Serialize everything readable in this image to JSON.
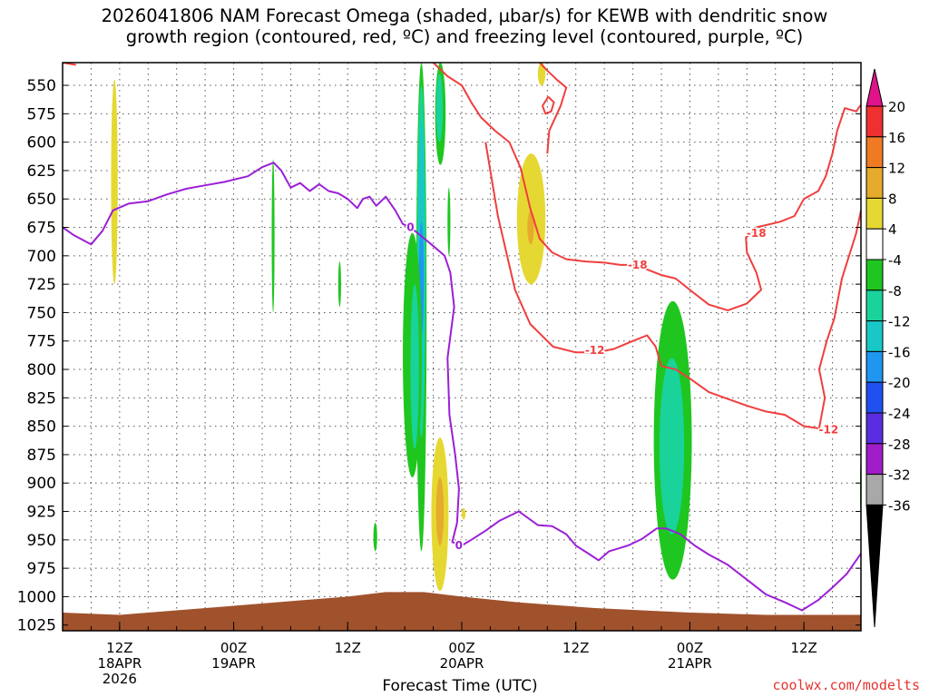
{
  "title_line1": "2026041806 NAM Forecast Omega (shaded, µbar/s) for KEWB with dendritic snow",
  "title_line2": "growth region (contoured, red, ºC) and freezing level (contoured, purple, ºC)",
  "credit": "coolwx.com/modelts",
  "chart_data": {
    "type": "heatmap",
    "xlabel": "Forecast Time (UTC)",
    "ylabel": "",
    "x_unit": "forecast hour from 2026041806",
    "xlim": [
      0,
      84
    ],
    "ylim": [
      1030,
      530
    ],
    "y_ticks": [
      550,
      575,
      600,
      625,
      650,
      675,
      700,
      725,
      750,
      775,
      800,
      825,
      850,
      875,
      900,
      925,
      950,
      975,
      1000,
      1025
    ],
    "x_ticks": [
      {
        "hour": 6,
        "label": [
          "12Z",
          "18APR",
          "2026"
        ]
      },
      {
        "hour": 18,
        "label": [
          "00Z",
          "19APR"
        ]
      },
      {
        "hour": 30,
        "label": [
          "12Z"
        ]
      },
      {
        "hour": 42,
        "label": [
          "00Z",
          "20APR"
        ]
      },
      {
        "hour": 54,
        "label": [
          "12Z"
        ]
      },
      {
        "hour": 66,
        "label": [
          "00Z",
          "21APR"
        ]
      },
      {
        "hour": 78,
        "label": [
          "12Z"
        ]
      }
    ],
    "grid": true,
    "colorbar": {
      "labels": [
        "20",
        "16",
        "12",
        "8",
        "4",
        "-4",
        "-8",
        "-12",
        "-16",
        "-20",
        "-24",
        "-28",
        "-32",
        "-36"
      ],
      "colors": [
        "#e8154f",
        "#f03030",
        "#f07a24",
        "#e6aa2c",
        "#e6d832",
        "#ffffff",
        "#1fc61f",
        "#19d39a",
        "#19c7c7",
        "#1f96f0",
        "#2050f0",
        "#5a2ee0",
        "#a01cc8",
        "#a8a8a8"
      ],
      "top_triangle_color": "#e0138a",
      "bottom_triangle_color": "#000000"
    },
    "omega_regions": [
      {
        "class": "4 to 8",
        "color": "#e6d832",
        "x": 5.1,
        "y": 545,
        "w": 0.7,
        "h": 180
      },
      {
        "class": "-4 to -8",
        "color": "#1fc61f",
        "x": 22.0,
        "y": 615,
        "w": 0.3,
        "h": 135
      },
      {
        "class": "-4 to -8",
        "color": "#1fc61f",
        "x": 29.0,
        "y": 705,
        "w": 0.3,
        "h": 40
      },
      {
        "class": "-4 to -8",
        "color": "#1fc61f",
        "x": 37.2,
        "y": 530,
        "w": 1.1,
        "h": 430
      },
      {
        "class": "-8 to -12",
        "color": "#19d39a",
        "x": 37.3,
        "y": 550,
        "w": 0.9,
        "h": 310
      },
      {
        "class": "-12 to -16",
        "color": "#19c7c7",
        "x": 37.4,
        "y": 580,
        "w": 0.7,
        "h": 250
      },
      {
        "class": "-16 to -20",
        "color": "#1f96f0",
        "x": 37.5,
        "y": 670,
        "w": 0.5,
        "h": 100
      },
      {
        "class": "-4 to -8",
        "color": "#1fc61f",
        "x": 39.2,
        "y": 530,
        "w": 1.1,
        "h": 90
      },
      {
        "class": "-8 to -12",
        "color": "#19d39a",
        "x": 39.3,
        "y": 540,
        "w": 0.7,
        "h": 60
      },
      {
        "class": "-4 to -8",
        "color": "#1fc61f",
        "x": 35.8,
        "y": 680,
        "w": 2.0,
        "h": 215
      },
      {
        "class": "-8 to -12",
        "color": "#19d39a",
        "x": 36.6,
        "y": 725,
        "w": 0.9,
        "h": 145
      },
      {
        "class": "-4 to -8",
        "color": "#1fc61f",
        "x": 40.5,
        "y": 640,
        "w": 0.3,
        "h": 60
      },
      {
        "class": "4 to 8",
        "color": "#e6d832",
        "x": 38.8,
        "y": 860,
        "w": 1.8,
        "h": 135
      },
      {
        "class": "8 to 12",
        "color": "#e6aa2c",
        "x": 39.3,
        "y": 895,
        "w": 0.8,
        "h": 60
      },
      {
        "class": "4 to 8",
        "color": "#e6d832",
        "x": 42.0,
        "y": 922,
        "w": 0.4,
        "h": 10
      },
      {
        "class": "-4 to -8",
        "color": "#1fc61f",
        "x": 32.7,
        "y": 935,
        "w": 0.4,
        "h": 25
      },
      {
        "class": "4 to 8",
        "color": "#e6d832",
        "x": 47.8,
        "y": 610,
        "w": 3.0,
        "h": 115
      },
      {
        "class": "8 to 12",
        "color": "#e6aa2c",
        "x": 48.9,
        "y": 660,
        "w": 0.7,
        "h": 30
      },
      {
        "class": "4 to 8",
        "color": "#e6d832",
        "x": 50.0,
        "y": 530,
        "w": 0.8,
        "h": 20
      },
      {
        "class": "-4 to -8",
        "color": "#1fc61f",
        "x": 62.2,
        "y": 740,
        "w": 4.0,
        "h": 245
      },
      {
        "class": "-8 to -12",
        "color": "#19d39a",
        "x": 62.8,
        "y": 790,
        "w": 2.6,
        "h": 155
      },
      {
        "class": "-4 to -8",
        "color": "#1fc61f",
        "x": 83.9,
        "y": 870,
        "w": 0.4,
        "h": 70
      }
    ],
    "contours": [
      {
        "name": "-12",
        "label": "-12",
        "color": "#f03e3e",
        "points": [
          [
            44.5,
            600
          ],
          [
            45.8,
            665
          ],
          [
            47.6,
            730
          ],
          [
            49.2,
            760
          ],
          [
            51.6,
            780
          ],
          [
            54.0,
            785
          ],
          [
            56.2,
            785
          ],
          [
            58.0,
            782
          ],
          [
            60.0,
            775
          ],
          [
            61.5,
            770
          ],
          [
            62.4,
            780
          ],
          [
            63.0,
            797
          ],
          [
            64.5,
            800
          ],
          [
            66.0,
            808
          ],
          [
            68.0,
            820
          ],
          [
            70.0,
            826
          ],
          [
            72.0,
            832
          ],
          [
            74.0,
            837
          ],
          [
            76.0,
            840
          ],
          [
            78.0,
            850
          ],
          [
            79.6,
            852
          ],
          [
            80.2,
            825
          ],
          [
            79.6,
            800
          ],
          [
            80.4,
            775
          ],
          [
            81.2,
            755
          ],
          [
            82.0,
            720
          ],
          [
            83.5,
            680
          ],
          [
            84.0,
            660
          ]
        ],
        "labels": [
          [
            56.0,
            783
          ],
          [
            80.6,
            853
          ]
        ]
      },
      {
        "name": "-12 upper",
        "label": "",
        "color": "#f03e3e",
        "points": [
          [
            0.0,
            530
          ],
          [
            1.4,
            532
          ]
        ],
        "labels": []
      },
      {
        "name": "-18",
        "label": "-18",
        "color": "#f03e3e",
        "points": [
          [
            39.0,
            530
          ],
          [
            40.5,
            542
          ],
          [
            42.0,
            550
          ],
          [
            43.0,
            565
          ],
          [
            44.0,
            578
          ],
          [
            45.5,
            590
          ],
          [
            47.0,
            600
          ],
          [
            48.2,
            623
          ],
          [
            49.2,
            658
          ],
          [
            50.2,
            685
          ],
          [
            51.5,
            697
          ],
          [
            53.0,
            703
          ],
          [
            55.0,
            705
          ],
          [
            57.0,
            706
          ],
          [
            58.7,
            708
          ],
          [
            60.0,
            708
          ],
          [
            61.5,
            712
          ],
          [
            63.0,
            717
          ],
          [
            64.5,
            720
          ],
          [
            66.0,
            730
          ],
          [
            68.0,
            743
          ],
          [
            70.0,
            748
          ],
          [
            72.0,
            742
          ],
          [
            73.5,
            730
          ],
          [
            73.0,
            715
          ],
          [
            72.0,
            697
          ],
          [
            71.9,
            684
          ],
          [
            73.0,
            675
          ],
          [
            75.5,
            670
          ],
          [
            77.0,
            665
          ],
          [
            78.0,
            650
          ],
          [
            79.5,
            643
          ],
          [
            80.3,
            630
          ],
          [
            81.0,
            610
          ],
          [
            81.5,
            590
          ],
          [
            82.3,
            570
          ],
          [
            83.5,
            573
          ],
          [
            84.0,
            567
          ]
        ],
        "labels": [
          [
            60.5,
            708
          ],
          [
            73.0,
            680
          ]
        ]
      },
      {
        "name": "-18 upper",
        "label": "",
        "color": "#f03e3e",
        "points": [
          [
            51.1,
            560
          ],
          [
            51.7,
            565
          ],
          [
            51.4,
            573
          ],
          [
            50.8,
            575
          ],
          [
            50.5,
            568
          ],
          [
            51.1,
            560
          ]
        ],
        "labels": []
      },
      {
        "name": "-18 right",
        "label": "",
        "color": "#f03e3e",
        "points": [
          [
            50.2,
            530
          ],
          [
            51.0,
            537
          ],
          [
            52.0,
            545
          ],
          [
            53.0,
            552
          ],
          [
            52.4,
            568
          ],
          [
            51.2,
            590
          ],
          [
            51.0,
            610
          ]
        ],
        "labels": []
      },
      {
        "name": "0",
        "label": "0",
        "color": "#9b1fd6",
        "points": [
          [
            0.0,
            675
          ],
          [
            1.2,
            682
          ],
          [
            3.0,
            690
          ],
          [
            4.2,
            678
          ],
          [
            5.3,
            660
          ],
          [
            7.0,
            654
          ],
          [
            9.0,
            652
          ],
          [
            11.0,
            646
          ],
          [
            13.0,
            641
          ],
          [
            15.0,
            638
          ],
          [
            17.0,
            635
          ],
          [
            19.5,
            630
          ],
          [
            21.0,
            622
          ],
          [
            22.2,
            618
          ],
          [
            23.0,
            625
          ],
          [
            24.0,
            640
          ],
          [
            25.0,
            636
          ],
          [
            26.0,
            643
          ],
          [
            27.0,
            637
          ],
          [
            28.0,
            643
          ],
          [
            29.0,
            645
          ],
          [
            30.0,
            650
          ],
          [
            31.0,
            658
          ],
          [
            31.6,
            650
          ],
          [
            32.3,
            648
          ],
          [
            33.0,
            656
          ],
          [
            34.0,
            648
          ],
          [
            35.0,
            660
          ],
          [
            35.8,
            672
          ],
          [
            36.6,
            675
          ],
          [
            37.5,
            681
          ],
          [
            38.8,
            690
          ],
          [
            40.2,
            700
          ],
          [
            40.8,
            715
          ],
          [
            41.2,
            745
          ],
          [
            40.5,
            790
          ],
          [
            40.7,
            840
          ],
          [
            41.3,
            875
          ],
          [
            41.7,
            905
          ],
          [
            41.5,
            935
          ],
          [
            41.0,
            952
          ],
          [
            42.0,
            955
          ],
          [
            43.0,
            950
          ],
          [
            44.5,
            942
          ],
          [
            46.0,
            933
          ],
          [
            48.0,
            925
          ],
          [
            50.0,
            937
          ],
          [
            51.5,
            938
          ],
          [
            53.0,
            945
          ],
          [
            54.0,
            955
          ],
          [
            55.5,
            963
          ],
          [
            56.4,
            968
          ],
          [
            57.5,
            960
          ],
          [
            59.5,
            955
          ],
          [
            61.0,
            949
          ],
          [
            62.5,
            940
          ],
          [
            63.5,
            940
          ],
          [
            65.0,
            945
          ],
          [
            66.5,
            955
          ],
          [
            68.0,
            963
          ],
          [
            70.0,
            972
          ],
          [
            72.0,
            985
          ],
          [
            74.0,
            998
          ],
          [
            76.0,
            1005
          ],
          [
            77.8,
            1012
          ],
          [
            79.5,
            1003
          ],
          [
            81.0,
            992
          ],
          [
            82.5,
            980
          ],
          [
            84.0,
            962
          ]
        ],
        "labels": [
          [
            36.6,
            675
          ],
          [
            41.7,
            955
          ]
        ]
      }
    ],
    "terrain": {
      "color": "#a0522d",
      "name": "surface",
      "points": [
        [
          0,
          1014
        ],
        [
          6,
          1016
        ],
        [
          12,
          1012
        ],
        [
          18,
          1008
        ],
        [
          24,
          1004
        ],
        [
          30,
          1000
        ],
        [
          34,
          996
        ],
        [
          38,
          996
        ],
        [
          42,
          1000
        ],
        [
          48,
          1005
        ],
        [
          56,
          1010
        ],
        [
          66,
          1014
        ],
        [
          74,
          1016
        ],
        [
          84,
          1016
        ]
      ]
    }
  }
}
